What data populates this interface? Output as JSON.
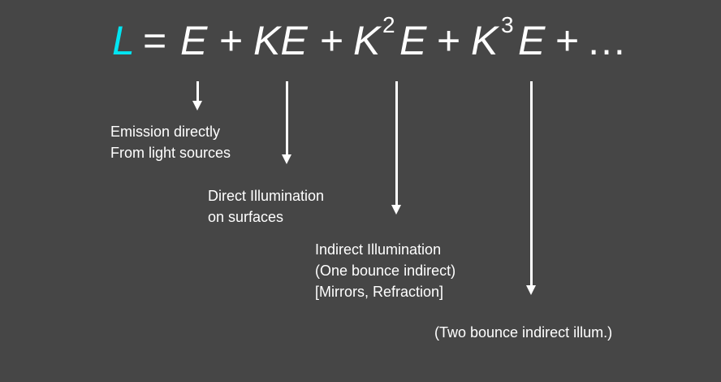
{
  "colors": {
    "background": "#464646",
    "accent": "#00e5f2",
    "text": "#ffffff"
  },
  "equation": {
    "lhs": "L",
    "equals": "=",
    "term_e": "E",
    "plus": "+",
    "term_ke": "KE",
    "k": "K",
    "exp2": "2",
    "exp3": "3",
    "e": "E",
    "ellipsis": "…"
  },
  "captions": {
    "emission": [
      "Emission directly",
      "From light sources"
    ],
    "direct": [
      "Direct Illumination",
      "on surfaces"
    ],
    "indirect": [
      "Indirect Illumination",
      "(One bounce indirect)",
      "[Mirrors, Refraction]"
    ],
    "two_bounce": [
      "(Two bounce indirect illum.)"
    ]
  }
}
